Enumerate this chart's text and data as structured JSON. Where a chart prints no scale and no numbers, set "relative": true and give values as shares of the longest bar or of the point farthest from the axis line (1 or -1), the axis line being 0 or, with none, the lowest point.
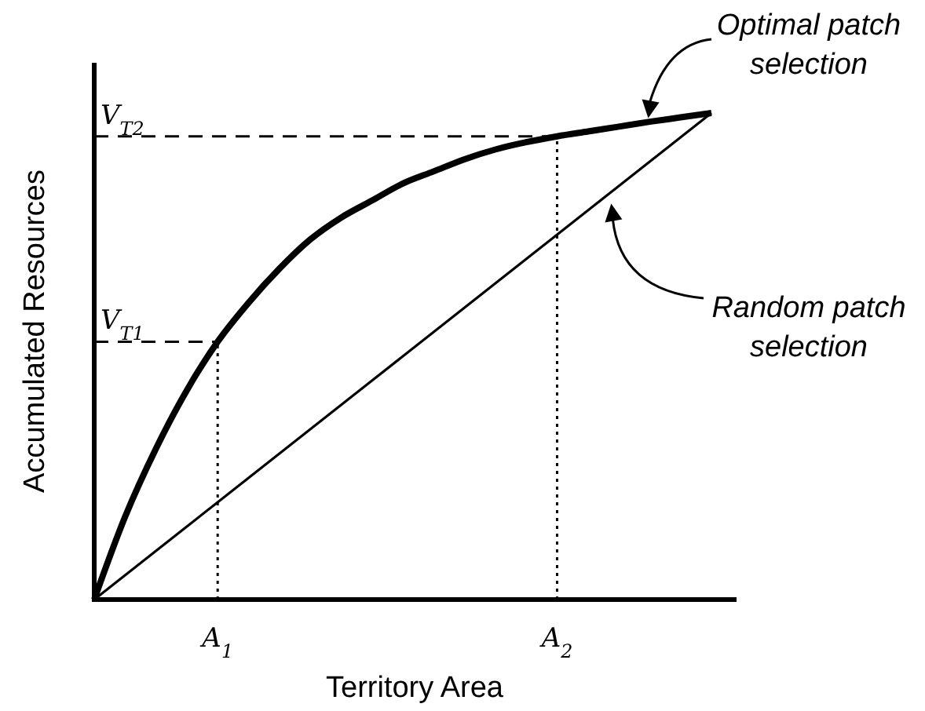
{
  "chart_data": {
    "type": "line",
    "relative": true,
    "xlabel": "Territory Area",
    "ylabel": "Accumulated Resources",
    "categories": [
      null,
      null,
      null,
      null,
      "A$_{1}$",
      null,
      null,
      null,
      null,
      null,
      null,
      null,
      null,
      null,
      null,
      "A$_{2}$",
      null,
      null,
      null,
      null,
      null
    ],
    "series": [
      {
        "color": "#000000",
        "values": [
          0,
          0.17,
          0.31,
          0.43,
          0.53,
          0.61,
          0.68,
          0.74,
          0.785,
          0.82,
          0.855,
          0.88,
          0.905,
          0.925,
          0.94,
          0.952,
          0.962,
          0.972,
          0.982,
          0.991,
          1
        ]
      },
      {
        "color": "#000000",
        "values": [
          0,
          0.05,
          0.1,
          0.15,
          0.2,
          0.25,
          0.3,
          0.35,
          0.4,
          0.45,
          0.5,
          0.55,
          0.6,
          0.65,
          0.7,
          0.75,
          0.8,
          0.85,
          0.9,
          0.95,
          1
        ]
      }
    ],
    "ref_lines": [
      {
        "axis": "y",
        "value": 0.53,
        "label": "V$_{T1}$",
        "line_style": "dashed"
      },
      {
        "axis": "y",
        "value": 0.952,
        "label": "V$_{T2}$",
        "line_style": "dashed"
      },
      {
        "axis": "x",
        "value": "A$_{1}$",
        "line_style": "dotted"
      },
      {
        "axis": "x",
        "value": "A$_{2}$",
        "line_style": "dotted"
      }
    ],
    "annotations": [
      "Optimal patch selection",
      "Random patch selection"
    ],
    "grid": false,
    "marker": "none",
    "line_style": "solid"
  }
}
